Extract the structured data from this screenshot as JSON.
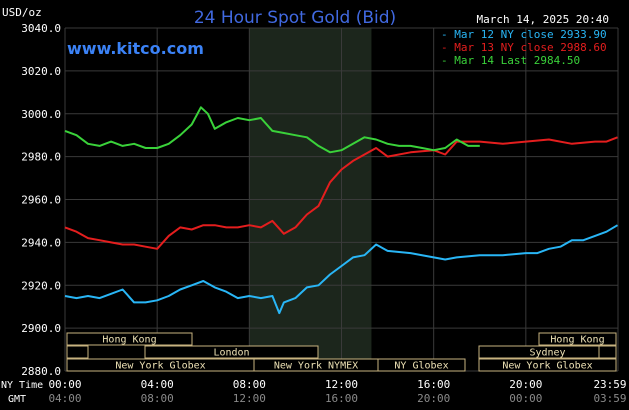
{
  "header": {
    "unit": "USD/oz",
    "title": "24 Hour Spot Gold (Bid)",
    "date": "March 14, 2025 20:40",
    "watermark": "www.kitco.com"
  },
  "colors": {
    "background": "#000000",
    "title": "#4169e1",
    "watermark": "#3b82f6",
    "grid": "#3a3a3a",
    "highlight": "#1c261c",
    "session_box": "#c8b380",
    "session_fill": "#ece0b4"
  },
  "axis": {
    "x_row1_label": "NY Time",
    "x_row2_label": "GMT",
    "ny_ticks": [
      "00:00",
      "04:00",
      "08:00",
      "12:00",
      "16:00",
      "20:00",
      "23:59"
    ],
    "gmt_ticks": [
      "04:00",
      "08:00",
      "12:00",
      "16:00",
      "20:00",
      "00:00",
      "03:59"
    ]
  },
  "sessions": [
    {
      "label": "Hong Kong",
      "row": 0
    },
    {
      "label": "",
      "row": 1
    },
    {
      "label": "London",
      "row": 1
    },
    {
      "label": "New York Globex",
      "row": 2
    },
    {
      "label": "New York NYMEX",
      "row": 2
    },
    {
      "label": "NY Globex",
      "row": 2
    },
    {
      "label": "Hong Kong",
      "row": 0
    },
    {
      "label": "Sydney",
      "row": 1
    },
    {
      "label": "",
      "row": 1
    },
    {
      "label": "New York Globex",
      "row": 2
    }
  ],
  "chart_data": {
    "type": "line",
    "title": "24 Hour Spot Gold (Bid)",
    "ylabel": "USD/oz",
    "xlabel": "NY Time",
    "ylim": [
      2880,
      3040
    ],
    "xlim": [
      0,
      24
    ],
    "y_ticks": [
      2880,
      2900,
      2920,
      2940,
      2960,
      2980,
      3000,
      3020,
      3040
    ],
    "y_tick_labels": [
      "2880.0",
      "2900.0",
      "2920.0",
      "2940.0",
      "2960.0",
      "2980.0",
      "3000.0",
      "3020.0",
      "3040.0"
    ],
    "highlight_range": [
      8,
      13.3
    ],
    "grid": true,
    "legend_position": "top-right",
    "series": [
      {
        "name": "Mar 12 NY close 2933.90",
        "color": "#29b6f6",
        "x": [
          0,
          0.5,
          1,
          1.5,
          2,
          2.5,
          3,
          3.5,
          4,
          4.5,
          5,
          5.5,
          6,
          6.5,
          7,
          7.5,
          8,
          8.5,
          9,
          9.3,
          9.5,
          10,
          10.5,
          11,
          11.5,
          12,
          12.5,
          13,
          13.5,
          14,
          15,
          16,
          16.5,
          17,
          18,
          19,
          20,
          20.5,
          21,
          21.5,
          22,
          22.5,
          23,
          23.5,
          23.98
        ],
        "y": [
          2915,
          2914,
          2915,
          2914,
          2916,
          2918,
          2912,
          2912,
          2913,
          2915,
          2918,
          2920,
          2922,
          2919,
          2917,
          2914,
          2915,
          2914,
          2915,
          2907,
          2912,
          2914,
          2919,
          2920,
          2925,
          2929,
          2933,
          2934,
          2939,
          2936,
          2935,
          2933,
          2932,
          2933,
          2934,
          2934,
          2935,
          2935,
          2937,
          2938,
          2941,
          2941,
          2943,
          2945,
          2948
        ]
      },
      {
        "name": "Mar 13 NY close 2988.60",
        "color": "#e41e1e",
        "x": [
          0,
          0.5,
          1,
          1.5,
          2,
          2.5,
          3,
          3.5,
          4,
          4.5,
          5,
          5.5,
          6,
          6.5,
          7,
          7.5,
          8,
          8.5,
          9,
          9.5,
          10,
          10.5,
          11,
          11.5,
          12,
          12.5,
          13,
          13.5,
          14,
          15,
          16,
          16.5,
          17,
          18,
          19,
          20,
          21,
          22,
          23,
          23.5,
          23.98
        ],
        "y": [
          2947,
          2945,
          2942,
          2941,
          2940,
          2939,
          2939,
          2938,
          2937,
          2943,
          2947,
          2946,
          2948,
          2948,
          2947,
          2947,
          2948,
          2947,
          2950,
          2944,
          2947,
          2953,
          2957,
          2968,
          2974,
          2978,
          2981,
          2984,
          2980,
          2982,
          2983,
          2981,
          2987,
          2987,
          2986,
          2987,
          2988,
          2986,
          2987,
          2987,
          2989
        ]
      },
      {
        "name": "Mar 14 Last 2984.50",
        "color": "#3ad23a",
        "x": [
          0,
          0.5,
          1,
          1.5,
          2,
          2.5,
          3,
          3.5,
          4,
          4.5,
          5,
          5.5,
          5.9,
          6.2,
          6.5,
          7,
          7.5,
          8,
          8.5,
          9,
          9.5,
          10,
          10.5,
          11,
          11.5,
          12,
          12.5,
          13,
          13.5,
          14,
          14.5,
          15,
          15.5,
          16,
          16.5,
          17,
          17.5,
          18
        ],
        "y": [
          2992,
          2990,
          2986,
          2985,
          2987,
          2985,
          2986,
          2984,
          2984,
          2986,
          2990,
          2995,
          3003,
          3000,
          2993,
          2996,
          2998,
          2997,
          2998,
          2992,
          2991,
          2990,
          2989,
          2985,
          2982,
          2983,
          2986,
          2989,
          2988,
          2986,
          2985,
          2985,
          2984,
          2983,
          2984,
          2988,
          2985,
          2985
        ]
      }
    ]
  }
}
